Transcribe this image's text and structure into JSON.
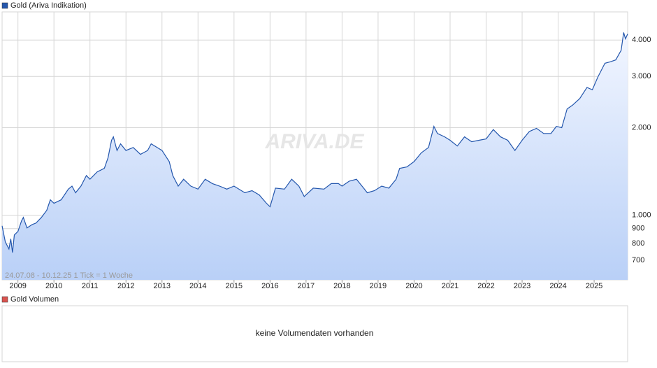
{
  "chart_data": {
    "type": "line",
    "title": "Gold (Ariva Indikation)",
    "range_note": "24.07.08 - 10.12.25   1 Tick = 1 Woche",
    "watermark": "ARIVA.DE",
    "volume_title": "Gold Volumen",
    "volume_note": "keine Volumendaten vorhanden",
    "log_scale": true,
    "grid": true,
    "xlim": [
      2008.56,
      2025.93
    ],
    "xticks": [
      2009,
      2010,
      2011,
      2012,
      2013,
      2014,
      2015,
      2016,
      2017,
      2018,
      2019,
      2020,
      2021,
      2022,
      2023,
      2024,
      2025
    ],
    "ylim": [
      600,
      5000
    ],
    "yticks": [
      {
        "value": 4000,
        "label": "4.000"
      },
      {
        "value": 3000,
        "label": "3.000"
      },
      {
        "value": 2000,
        "label": "2.000"
      },
      {
        "value": 1000,
        "label": "1.000"
      },
      900,
      800,
      700
    ],
    "series": [
      {
        "name": "Gold (Ariva Indikation)",
        "color": "#2457ad",
        "x": [
          2008.56,
          2008.65,
          2008.75,
          2008.8,
          2008.85,
          2008.9,
          2009.0,
          2009.1,
          2009.15,
          2009.25,
          2009.4,
          2009.5,
          2009.65,
          2009.8,
          2009.9,
          2010.0,
          2010.2,
          2010.4,
          2010.5,
          2010.6,
          2010.75,
          2010.9,
          2011.0,
          2011.2,
          2011.4,
          2011.5,
          2011.6,
          2011.65,
          2011.75,
          2011.85,
          2012.0,
          2012.2,
          2012.4,
          2012.6,
          2012.7,
          2012.9,
          2013.0,
          2013.2,
          2013.3,
          2013.45,
          2013.6,
          2013.8,
          2014.0,
          2014.2,
          2014.4,
          2014.6,
          2014.8,
          2015.0,
          2015.3,
          2015.5,
          2015.7,
          2015.9,
          2016.0,
          2016.15,
          2016.4,
          2016.6,
          2016.8,
          2016.95,
          2017.2,
          2017.5,
          2017.7,
          2017.9,
          2018.0,
          2018.2,
          2018.4,
          2018.6,
          2018.7,
          2018.9,
          2019.1,
          2019.3,
          2019.5,
          2019.6,
          2019.8,
          2020.0,
          2020.2,
          2020.4,
          2020.55,
          2020.65,
          2020.85,
          2021.0,
          2021.2,
          2021.4,
          2021.6,
          2021.8,
          2022.0,
          2022.2,
          2022.4,
          2022.6,
          2022.8,
          2023.0,
          2023.2,
          2023.4,
          2023.6,
          2023.8,
          2023.95,
          2024.1,
          2024.25,
          2024.4,
          2024.6,
          2024.8,
          2024.95,
          2025.1,
          2025.3,
          2025.45,
          2025.6,
          2025.75,
          2025.82,
          2025.87,
          2025.93
        ],
        "values": [
          920,
          810,
          766,
          830,
          745,
          856,
          880,
          957,
          983,
          905,
          930,
          940,
          983,
          1040,
          1130,
          1100,
          1130,
          1230,
          1260,
          1195,
          1260,
          1370,
          1330,
          1410,
          1450,
          1575,
          1810,
          1860,
          1670,
          1760,
          1670,
          1710,
          1620,
          1670,
          1760,
          1700,
          1670,
          1530,
          1370,
          1260,
          1330,
          1260,
          1230,
          1330,
          1285,
          1260,
          1230,
          1260,
          1195,
          1215,
          1175,
          1100,
          1070,
          1240,
          1230,
          1330,
          1260,
          1160,
          1240,
          1230,
          1285,
          1285,
          1260,
          1310,
          1330,
          1240,
          1195,
          1215,
          1260,
          1240,
          1330,
          1450,
          1466,
          1530,
          1640,
          1710,
          2020,
          1910,
          1860,
          1810,
          1730,
          1860,
          1790,
          1810,
          1830,
          1970,
          1860,
          1810,
          1670,
          1810,
          1940,
          1990,
          1910,
          1910,
          2020,
          2000,
          2320,
          2390,
          2520,
          2750,
          2700,
          2980,
          3330,
          3370,
          3420,
          3690,
          4250,
          4040,
          4200
        ]
      }
    ]
  }
}
